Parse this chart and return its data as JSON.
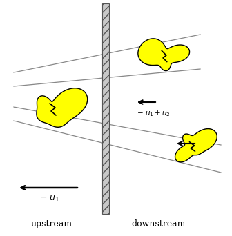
{
  "fig_width": 3.36,
  "fig_height": 3.42,
  "dpi": 100,
  "yellow_color": "#ffff00",
  "outline_color": "#000000",
  "bg_color": "#ffffff",
  "label_upstream": "upstream",
  "label_downstream": "downstream"
}
